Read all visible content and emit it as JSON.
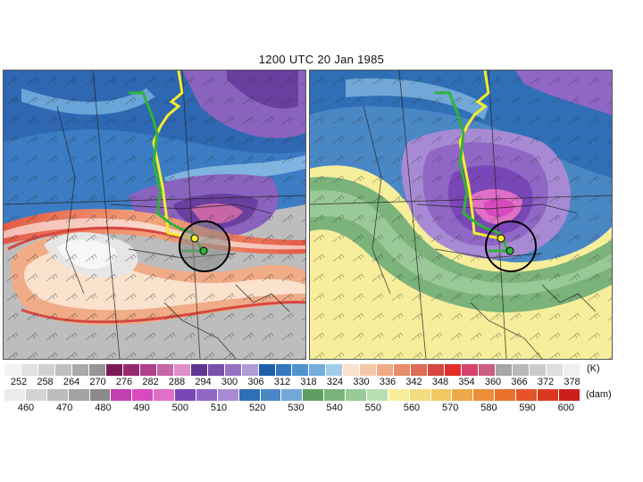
{
  "title": "1200 UTC 20 Jan 1985",
  "left_panel": {
    "field": "theta-on-pv-surface",
    "features": [
      "upper-jet-band",
      "cold-polar-vortex",
      "warm-subtropical-air",
      "wind-barbs"
    ]
  },
  "right_panel": {
    "field": "1000-500-thickness",
    "features": [
      "cold-thickness-trough",
      "warm-southern-air",
      "wind-barbs"
    ]
  },
  "tracks": {
    "yellow": {
      "color": "#f3ee2a",
      "label": ""
    },
    "green": {
      "color": "#2fb33a",
      "label": ""
    }
  },
  "circle_marker": {
    "color": "#000000"
  },
  "colorbar_top": {
    "unit": "(K)",
    "labels": [
      "252",
      "258",
      "264",
      "270",
      "276",
      "282",
      "288",
      "294",
      "300",
      "306",
      "312",
      "318",
      "324",
      "330",
      "336",
      "342",
      "348",
      "354",
      "360",
      "366",
      "372",
      "378"
    ],
    "colors": [
      "#f2f2f2",
      "#e2e2e2",
      "#d1d1d1",
      "#bfbfbf",
      "#aaaaaa",
      "#959595",
      "#7b1a57",
      "#96296f",
      "#b0418a",
      "#c866a7",
      "#df8fc7",
      "#5e3594",
      "#7950ac",
      "#9472c2",
      "#b09bd6",
      "#1f5fa8",
      "#3277bf",
      "#4f93d1",
      "#72afdd",
      "#a2cde9",
      "#fae2cd",
      "#f5c8a8",
      "#f0ab87",
      "#e88d6c",
      "#df6c55",
      "#d64840",
      "#e32e27",
      "#d7436d",
      "#c95d82",
      "#a6a6a6",
      "#b9b9b9",
      "#cbcbcb",
      "#dedede",
      "#efefef"
    ]
  },
  "colorbar_bottom": {
    "unit": "(dam)",
    "labels": [
      "460",
      "470",
      "480",
      "490",
      "500",
      "510",
      "520",
      "530",
      "540",
      "550",
      "560",
      "570",
      "580",
      "590",
      "600"
    ],
    "colors": [
      "#ebebeb",
      "#d3d3d3",
      "#bdbdbd",
      "#a3a3a3",
      "#8a8a8a",
      "#c13fb1",
      "#d84bbf",
      "#e26fc7",
      "#7a47b8",
      "#9067c5",
      "#a78ad3",
      "#2f6fb6",
      "#4a87c5",
      "#72a8d7",
      "#5f9e62",
      "#7bb37a",
      "#9ac998",
      "#b8ddb2",
      "#f7ee9b",
      "#f5db7f",
      "#f2c863",
      "#efa94a",
      "#ec8d3a",
      "#e9712e",
      "#e45426",
      "#d93a1f",
      "#cc1f1a"
    ]
  }
}
